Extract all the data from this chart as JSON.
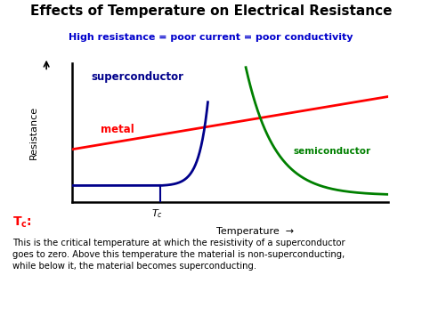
{
  "title": "Effects of Temperature on Electrical Resistance",
  "subtitle": "High resistance = poor current = poor conductivity",
  "subtitle_color": "#0000cc",
  "title_fontsize": 11,
  "subtitle_fontsize": 8,
  "ylabel": "Resistance",
  "xlabel": "Temperature",
  "background_color": "#ffffff",
  "metal_color": "#ff0000",
  "superconductor_color": "#00008b",
  "semiconductor_color": "#008000",
  "tc_color": "#ff0000",
  "bottom_text": "This is the critical temperature at which the resistivity of a superconductor\ngoes to zero. Above this temperature the material is non-superconducting,\nwhile below it, the material becomes superconducting.",
  "figsize": [
    4.74,
    3.55
  ],
  "dpi": 100
}
